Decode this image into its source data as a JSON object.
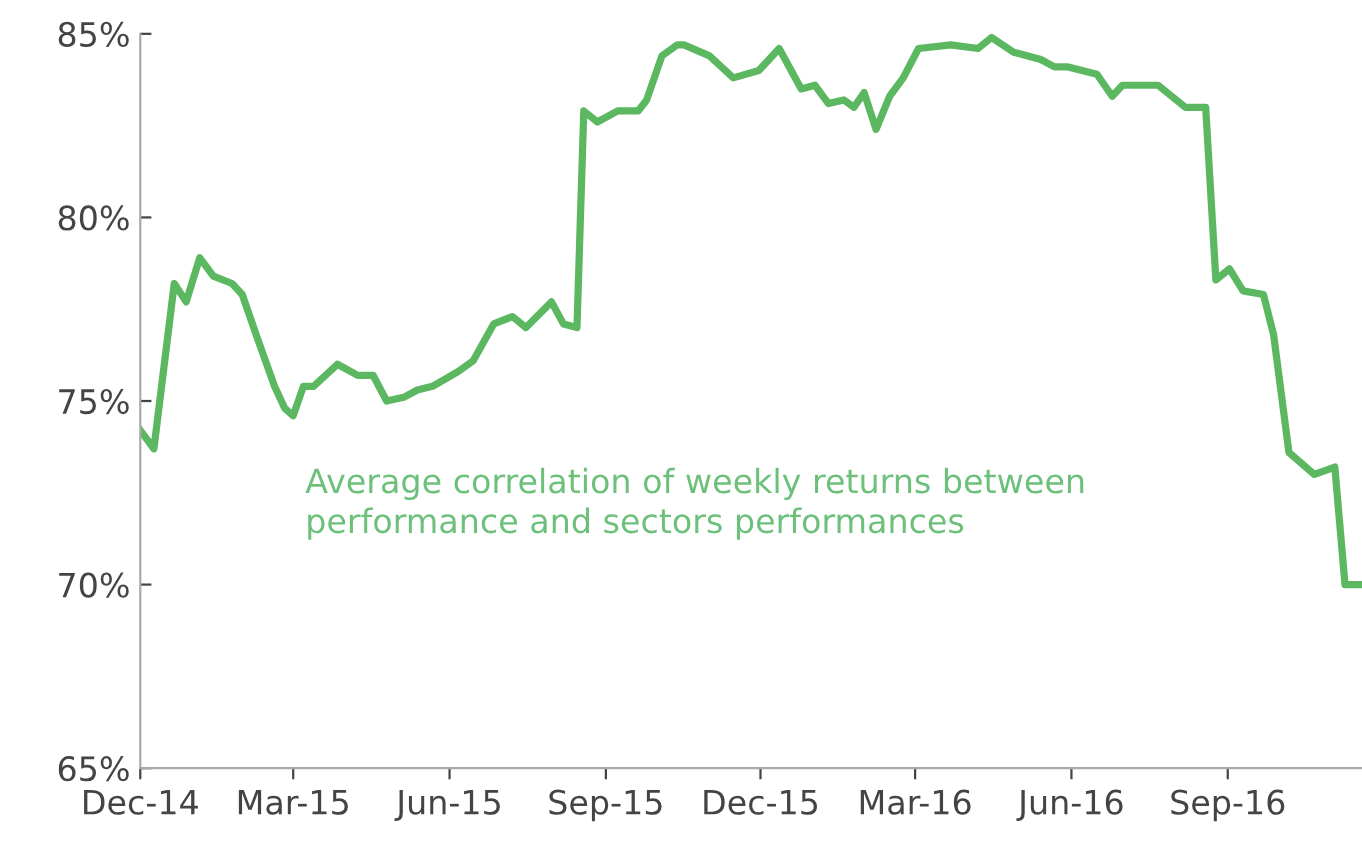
{
  "chart_data": {
    "type": "line",
    "x": [
      "2014-12-01",
      "2014-12-09",
      "2014-12-21",
      "2014-12-28",
      "2015-01-05",
      "2015-01-13",
      "2015-01-24",
      "2015-01-30",
      "2015-02-08",
      "2015-02-18",
      "2015-02-24",
      "2015-03-01",
      "2015-03-07",
      "2015-03-13",
      "2015-03-27",
      "2015-04-08",
      "2015-04-17",
      "2015-04-25",
      "2015-05-05",
      "2015-05-13",
      "2015-05-22",
      "2015-06-06",
      "2015-06-15",
      "2015-06-27",
      "2015-07-08",
      "2015-07-16",
      "2015-07-31",
      "2015-08-07",
      "2015-08-15",
      "2015-08-19",
      "2015-08-27",
      "2015-09-08",
      "2015-09-20",
      "2015-09-25",
      "2015-10-04",
      "2015-10-13",
      "2015-10-17",
      "2015-11-01",
      "2015-11-15",
      "2015-11-30",
      "2015-12-12",
      "2015-12-25",
      "2016-01-02",
      "2016-01-10",
      "2016-01-19",
      "2016-01-25",
      "2016-01-31",
      "2016-02-07",
      "2016-02-15",
      "2016-02-23",
      "2016-03-03",
      "2016-03-22",
      "2016-04-07",
      "2016-04-15",
      "2016-04-28",
      "2016-05-14",
      "2016-05-22",
      "2016-05-30",
      "2016-06-16",
      "2016-06-25",
      "2016-07-01",
      "2016-07-22",
      "2016-08-07",
      "2016-08-19",
      "2016-08-25",
      "2016-09-02",
      "2016-09-10",
      "2016-09-22",
      "2016-09-28",
      "2016-10-07",
      "2016-10-22",
      "2016-11-03",
      "2016-11-09",
      "2016-11-19"
    ],
    "series": [
      {
        "color": "#5cb860",
        "values": [
          74.2,
          73.7,
          78.2,
          77.7,
          78.9,
          78.4,
          78.2,
          77.9,
          76.7,
          75.4,
          74.8,
          74.6,
          75.4,
          75.4,
          76.0,
          75.7,
          75.7,
          75.0,
          75.1,
          75.3,
          75.4,
          75.8,
          76.1,
          77.1,
          77.3,
          77.0,
          77.7,
          77.1,
          77.0,
          82.9,
          82.6,
          82.9,
          82.9,
          83.2,
          84.4,
          84.7,
          84.7,
          84.4,
          83.8,
          84.0,
          84.6,
          83.5,
          83.6,
          83.1,
          83.2,
          83.0,
          83.4,
          82.4,
          83.3,
          83.8,
          84.6,
          84.7,
          84.6,
          84.9,
          84.5,
          84.3,
          84.1,
          84.1,
          83.9,
          83.3,
          83.6,
          83.6,
          83.0,
          83.0,
          78.3,
          78.6,
          78.0,
          77.9,
          76.8,
          73.6,
          73.0,
          73.2,
          70.0,
          70.0
        ]
      }
    ],
    "xlim": [
      "2014-12-01",
      "2016-11-19"
    ],
    "xticks": [
      {
        "value": "2014-12-01",
        "label": "Dec-14"
      },
      {
        "value": "2015-03-01",
        "label": "Mar-15"
      },
      {
        "value": "2015-06-01",
        "label": "Jun-15"
      },
      {
        "value": "2015-09-01",
        "label": "Sep-15"
      },
      {
        "value": "2015-12-01",
        "label": "Dec-15"
      },
      {
        "value": "2016-03-01",
        "label": "Mar-16"
      },
      {
        "value": "2016-06-01",
        "label": "Jun-16"
      },
      {
        "value": "2016-09-01",
        "label": "Sep-16"
      }
    ],
    "ylim": [
      65,
      85
    ],
    "yticks": [
      {
        "value": 65,
        "label": "65%"
      },
      {
        "value": 70,
        "label": "70%"
      },
      {
        "value": 75,
        "label": "75%"
      },
      {
        "value": 80,
        "label": "80%"
      },
      {
        "value": 85,
        "label": "85%"
      }
    ],
    "annotations": [
      "Average correlation of weekly returns between\nperformance and sectors performances"
    ],
    "grid": false,
    "marker": "none",
    "line_style": "solid"
  }
}
